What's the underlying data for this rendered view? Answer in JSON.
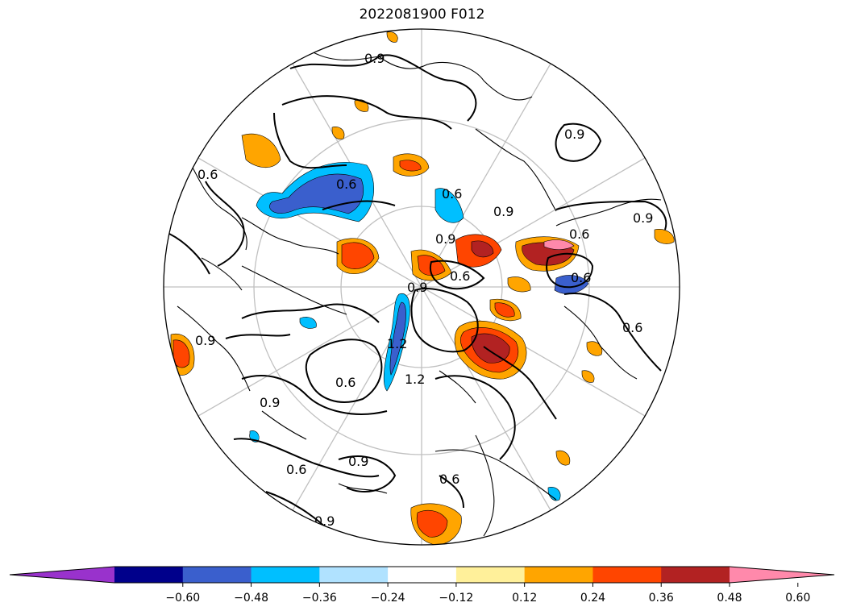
{
  "title": "2022081900 F012",
  "map": {
    "projection": "north-polar-stereographic",
    "graticule": "on",
    "contour_labels": [
      "0.9",
      "0.9",
      "0.6",
      "0.6",
      "0.6",
      "0.9",
      "0.9",
      "0.9",
      "0.6",
      "0.6",
      "0.9",
      "0.6",
      "0.6",
      "0.6",
      "1.2",
      "0.6",
      "0.9",
      "0.9",
      "0.6",
      "0.6",
      "0.9",
      "0.9",
      "1.2"
    ]
  },
  "colorbar": {
    "colors": [
      "#9932cc",
      "#00008b",
      "#3a5fcd",
      "#00bfff",
      "#b0e2ff",
      "#ffffff",
      "#fff09a",
      "#ffa500",
      "#ff4500",
      "#b22222",
      "#ff89ab"
    ],
    "ticks": [
      "−0.60",
      "−0.48",
      "−0.36",
      "−0.24",
      "−0.12",
      "0.12",
      "0.24",
      "0.36",
      "0.48",
      "0.60"
    ],
    "extend": "both"
  }
}
